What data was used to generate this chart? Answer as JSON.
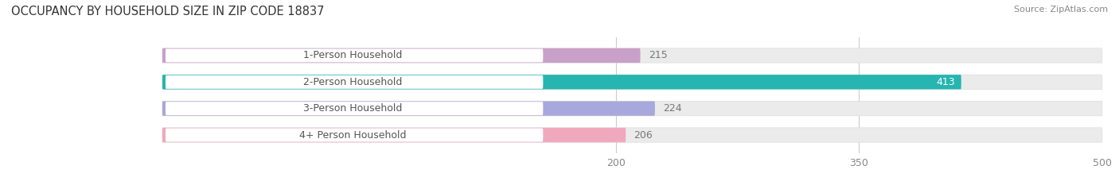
{
  "title": "OCCUPANCY BY HOUSEHOLD SIZE IN ZIP CODE 18837",
  "source": "Source: ZipAtlas.com",
  "categories": [
    "1-Person Household",
    "2-Person Household",
    "3-Person Household",
    "4+ Person Household"
  ],
  "values": [
    215,
    413,
    224,
    206
  ],
  "bar_colors": [
    "#c9a0c8",
    "#26b5b0",
    "#a8a8dc",
    "#f0a8bc"
  ],
  "xmin": 200,
  "xmax": 500,
  "xticks": [
    200,
    350,
    500
  ],
  "figwidth": 14.06,
  "figheight": 2.33,
  "dpi": 100,
  "title_fontsize": 10.5,
  "source_fontsize": 8,
  "label_fontsize": 9,
  "value_fontsize": 9,
  "tick_fontsize": 9,
  "bar_height": 0.55,
  "label_box_color": "#ffffff",
  "bg_bar_color": "#ebebeb",
  "bg_color": "#f5f5f5"
}
